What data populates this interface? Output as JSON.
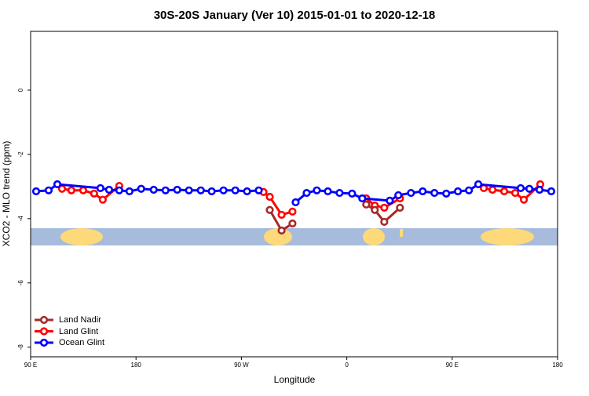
{
  "chart_data": {
    "type": "line",
    "title": "30S-20S January (Ver 10)   2015-01-01 to 2020-12-18",
    "x_label": "Longitude",
    "y_label": "XCO2 - MLO trend (ppm)",
    "xlim": [
      90,
      540
    ],
    "xticks": [
      {
        "value": 90,
        "label": "90 E"
      },
      180,
      {
        "value": 270,
        "label": "90 W"
      },
      {
        "value": 360,
        "label": "0"
      },
      {
        "value": 450,
        "label": "90 E"
      },
      {
        "value": 540,
        "label": "180"
      }
    ],
    "ylim": [
      -8.3,
      1.83
    ],
    "yticks": [
      0,
      -2,
      -4,
      -6,
      -8
    ],
    "legend": "bottom-left",
    "series": [
      {
        "name": "Land Nadir",
        "color": "#a52a2a",
        "x": [
          294.2,
          304.3,
          313.6,
          null,
          376.6,
          383.9,
          392.0,
          405.4
        ],
        "values": [
          -3.73,
          -4.37,
          -4.15,
          null,
          -3.56,
          -3.73,
          -4.1,
          -3.66
        ]
      },
      {
        "name": "Land Glint",
        "color": "#ff0000",
        "x": [
          116.8,
          124.8,
          134.9,
          144.2,
          151.6,
          165.7,
          null,
          288.9,
          294.2,
          304.3,
          313.6,
          null,
          376.6,
          383.9,
          392.0,
          405.4,
          null,
          477.0,
          484.4,
          494.4,
          503.8,
          511.2,
          525.2
        ],
        "values": [
          -3.07,
          -3.12,
          -3.12,
          -3.22,
          -3.41,
          -2.98,
          null,
          -3.17,
          -3.32,
          -3.88,
          -3.78,
          null,
          -3.37,
          -3.59,
          -3.66,
          -3.37,
          null,
          -3.05,
          -3.1,
          -3.15,
          -3.2,
          -3.41,
          -2.93
        ]
      },
      {
        "name": "Ocean Glint",
        "color": "#0000ff",
        "x": [
          94.7,
          105.4,
          112.8,
          149.6,
          157.0,
          165.7,
          174.4,
          184.4,
          195.1,
          205.2,
          215.2,
          225.2,
          235.3,
          244.6,
          254.7,
          264.8,
          274.8,
          284.8,
          null,
          316.3,
          325.7,
          334.4,
          343.8,
          353.8,
          364.5,
          373.2,
          396.7,
          404.0,
          414.8,
          424.8,
          434.8,
          444.9,
          454.9,
          464.3,
          472.3,
          508.5,
          515.9,
          524.6,
          534.6
        ],
        "values": [
          -3.15,
          -3.12,
          -2.93,
          -3.05,
          -3.1,
          -3.12,
          -3.15,
          -3.07,
          -3.1,
          -3.12,
          -3.1,
          -3.12,
          -3.12,
          -3.15,
          -3.12,
          -3.12,
          -3.15,
          -3.12,
          null,
          -3.49,
          -3.2,
          -3.12,
          -3.15,
          -3.2,
          -3.22,
          -3.37,
          -3.44,
          -3.27,
          -3.2,
          -3.15,
          -3.2,
          -3.22,
          -3.15,
          -3.12,
          -2.93,
          -3.05,
          -3.07,
          -3.1,
          -3.15
        ]
      }
    ]
  }
}
